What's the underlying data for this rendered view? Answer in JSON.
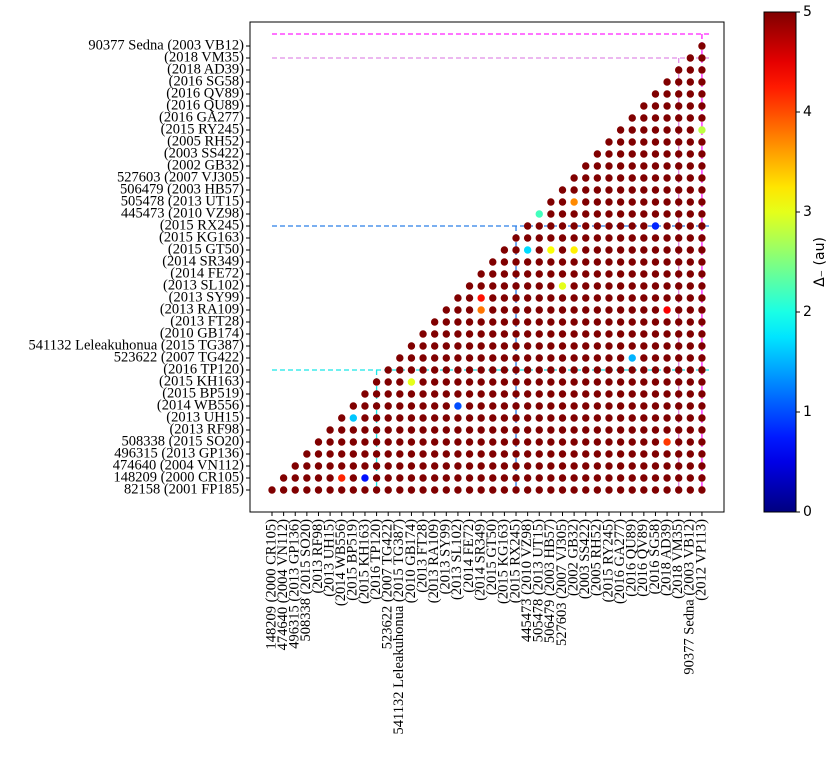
{
  "chart_data": {
    "type": "matrix",
    "x_categories": [
      "148209 (2000 CR105)",
      "474640 (2004 VN112)",
      "496315 (2013 GP136)",
      "508338 (2015 SO20)",
      "(2013 RF98)",
      "(2013 UH15)",
      "(2014 WB556)",
      "(2015 BP519)",
      "(2015 KH163)",
      "(2016 TP120)",
      "523622 (2007 TG422)",
      "541132 Leleakuhonua (2015 TG387)",
      "(2010 GB174)",
      "(2013 FT28)",
      "(2013 RA109)",
      "(2013 SY99)",
      "(2013 SL102)",
      "(2014 FE72)",
      "(2014 SR349)",
      "(2015 GT50)",
      "(2015 KG163)",
      "(2015 RX245)",
      "445473 (2010 VZ98)",
      "505478 (2013 UT15)",
      "506479 (2003 HB57)",
      "527603 (2007 VJ305)",
      "(2002 GB32)",
      "(2003 SS422)",
      "(2005 RH52)",
      "(2015 RY245)",
      "(2016 GA277)",
      "(2016 QU89)",
      "(2016 QV89)",
      "(2016 SG58)",
      "(2018 AD39)",
      "(2018 VM35)",
      "90377 Sedna (2003 VB12)",
      "(2012 VP113)"
    ],
    "y_categories": [
      "82158 (2001 FP185)",
      "148209 (2000 CR105)",
      "474640 (2004 VN112)",
      "496315 (2013 GP136)",
      "508338 (2015 SO20)",
      "(2013 RF98)",
      "(2013 UH15)",
      "(2014 WB556)",
      "(2015 BP519)",
      "(2015 KH163)",
      "(2016 TP120)",
      "523622 (2007 TG422)",
      "541132 Leleakuhonua (2015 TG387)",
      "(2010 GB174)",
      "(2013 FT28)",
      "(2013 RA109)",
      "(2013 SY99)",
      "(2013 SL102)",
      "(2014 FE72)",
      "(2014 SR349)",
      "(2015 GT50)",
      "(2015 KG163)",
      "(2015 RX245)",
      "445473 (2010 VZ98)",
      "505478 (2013 UT15)",
      "506479 (2003 HB57)",
      "527603 (2007 VJ305)",
      "(2002 GB32)",
      "(2003 SS422)",
      "(2005 RH52)",
      "(2015 RY245)",
      "(2016 GA277)",
      "(2016 QU89)",
      "(2016 QV89)",
      "(2016 SG58)",
      "(2018 AD39)",
      "(2018 VM35)",
      "90377 Sedna (2003 VB12)"
    ],
    "values": [
      [
        5,
        5,
        5,
        5,
        5,
        5,
        5,
        5,
        5,
        5,
        5,
        5,
        5,
        5,
        5,
        5,
        5,
        5,
        5,
        5,
        5,
        5,
        5,
        5,
        5,
        5,
        5,
        5,
        5,
        5,
        5,
        5,
        5,
        5,
        5,
        5,
        5,
        5
      ],
      [
        5,
        5,
        5,
        5,
        5,
        4.2,
        5,
        0.7,
        5,
        5,
        5,
        5,
        5,
        5,
        5,
        5,
        5,
        5,
        5,
        5,
        5,
        5,
        5,
        5,
        5,
        5,
        5,
        5,
        5,
        5,
        5,
        5,
        5,
        5,
        5,
        5,
        5
      ],
      [
        5,
        5,
        5,
        5,
        5,
        5,
        5,
        5,
        5,
        5,
        5,
        5,
        5,
        5,
        5,
        5,
        5,
        5,
        5,
        5,
        5,
        5,
        5,
        5,
        5,
        5,
        5,
        5,
        5,
        5,
        5,
        5,
        5,
        5,
        5,
        5
      ],
      [
        5,
        5,
        5,
        5,
        5,
        5,
        5,
        5,
        5,
        5,
        5,
        5,
        5,
        5,
        5,
        5,
        5,
        5,
        5,
        5,
        5,
        5,
        5,
        5,
        5,
        5,
        5,
        5,
        5,
        5,
        5,
        5,
        5,
        5,
        5
      ],
      [
        5,
        5,
        5,
        5,
        5,
        5,
        5,
        5,
        5,
        5,
        5,
        5,
        5,
        5,
        5,
        5,
        5,
        5,
        5,
        5,
        5,
        5,
        5,
        5,
        5,
        5,
        5,
        5,
        5,
        5,
        4.1,
        5,
        5,
        5
      ],
      [
        5,
        5,
        5,
        5,
        5,
        5,
        5,
        5,
        5,
        5,
        5,
        5,
        5,
        5,
        5,
        5,
        5,
        5,
        5,
        5,
        5,
        5,
        5,
        5,
        5,
        5,
        5,
        5,
        5,
        5,
        5,
        5,
        5
      ],
      [
        5,
        1.6,
        5,
        5,
        5,
        5,
        5,
        5,
        5,
        5,
        5,
        5,
        5,
        5,
        5,
        5,
        5,
        5,
        5,
        5,
        5,
        5,
        5,
        5,
        5,
        5,
        5,
        5,
        5,
        5,
        5,
        5
      ],
      [
        5,
        5,
        5,
        5,
        5,
        5,
        5,
        5,
        5,
        1.0,
        5,
        5,
        5,
        5,
        5,
        5,
        5,
        5,
        5,
        5,
        5,
        5,
        5,
        5,
        5,
        5,
        5,
        5,
        5,
        5,
        5
      ],
      [
        5,
        5,
        5,
        5,
        5,
        5,
        5,
        5,
        5,
        5,
        5,
        5,
        5,
        5,
        5,
        5,
        5,
        5,
        5,
        5,
        5,
        5,
        5,
        5,
        5,
        5,
        5,
        5,
        5,
        5
      ],
      [
        5,
        5,
        5,
        3.0,
        5,
        5,
        5,
        5,
        5,
        5,
        5,
        5,
        5,
        5,
        5,
        5,
        5,
        5,
        5,
        5,
        5,
        5,
        5,
        5,
        5,
        5,
        5,
        5,
        5
      ],
      [
        5,
        5,
        5,
        5,
        5,
        5,
        5,
        5,
        5,
        5,
        5,
        5,
        5,
        5,
        5,
        5,
        5,
        5,
        5,
        5,
        5,
        5,
        5,
        5,
        5,
        5,
        5,
        5
      ],
      [
        5,
        5,
        5,
        5,
        5,
        5,
        5,
        5,
        5,
        5,
        5,
        5,
        5,
        5,
        5,
        5,
        5,
        5,
        5,
        5,
        1.5,
        5,
        5,
        5,
        5,
        5,
        5
      ],
      [
        5,
        5,
        5,
        5,
        5,
        5,
        5,
        5,
        5,
        5,
        5,
        5,
        5,
        5,
        5,
        5,
        5,
        5,
        5,
        5,
        5,
        5,
        5,
        5,
        5,
        5
      ],
      [
        5,
        5,
        5,
        5,
        5,
        5,
        5,
        5,
        5,
        5,
        5,
        5,
        5,
        5,
        5,
        5,
        5,
        5,
        5,
        5,
        5,
        5,
        5,
        5,
        5
      ],
      [
        5,
        5,
        5,
        5,
        5,
        5,
        5,
        5,
        5,
        5,
        5,
        5,
        5,
        5,
        5,
        5,
        5,
        5,
        5,
        5,
        5,
        5,
        5,
        5
      ],
      [
        5,
        5,
        5,
        3.8,
        5,
        5,
        5,
        5,
        5,
        5,
        5,
        5,
        5,
        5,
        5,
        5,
        5,
        5,
        5,
        4.4,
        5,
        5,
        5
      ],
      [
        5,
        5,
        4.3,
        5,
        5,
        5,
        5,
        5,
        5,
        5,
        5,
        5,
        5,
        5,
        5,
        5,
        5,
        5,
        5,
        5,
        5,
        5
      ],
      [
        5,
        5,
        5,
        5,
        5,
        5,
        5,
        5,
        3.0,
        5,
        5,
        5,
        5,
        5,
        5,
        5,
        5,
        5,
        5,
        5,
        5
      ],
      [
        5,
        5,
        5,
        5,
        5,
        5,
        5,
        5,
        5,
        5,
        5,
        5,
        5,
        5,
        5,
        5,
        5,
        5,
        5,
        5
      ],
      [
        5,
        5,
        5,
        5,
        5,
        5,
        5,
        5,
        5,
        5,
        5,
        5,
        5,
        5,
        5,
        5,
        5,
        5,
        5
      ],
      [
        5,
        5,
        1.7,
        5,
        3.1,
        5,
        3.2,
        5,
        5,
        5,
        5,
        5,
        5,
        5,
        5,
        5,
        5,
        5
      ],
      [
        5,
        5,
        5,
        5,
        5,
        5,
        5,
        5,
        5,
        5,
        5,
        5,
        5,
        5,
        5,
        5,
        5
      ],
      [
        5,
        5,
        5,
        5,
        5,
        5,
        5,
        5,
        5,
        5,
        5,
        0.8,
        5,
        5,
        5,
        5
      ],
      [
        2.2,
        5,
        5,
        5,
        5,
        5,
        5,
        5,
        5,
        5,
        5,
        5,
        5,
        5,
        5
      ],
      [
        5,
        5,
        3.7,
        5,
        5,
        5,
        5,
        5,
        5,
        5,
        5,
        5,
        5,
        5
      ],
      [
        5,
        5,
        5,
        5,
        5,
        5,
        5,
        5,
        5,
        5,
        5,
        5,
        5
      ],
      [
        5,
        5,
        5,
        5,
        5,
        5,
        5,
        5,
        5,
        5,
        5,
        5
      ],
      [
        5,
        5,
        5,
        5,
        5,
        5,
        5,
        5,
        5,
        5,
        5
      ],
      [
        5,
        5,
        5,
        5,
        5,
        5,
        5,
        5,
        5,
        5
      ],
      [
        5,
        5,
        5,
        5,
        5,
        5,
        5,
        5,
        5
      ],
      [
        5,
        5,
        5,
        5,
        5,
        5,
        5,
        2.8
      ],
      [
        5,
        5,
        5,
        5,
        5,
        5,
        5
      ],
      [
        5,
        5,
        5,
        5,
        5,
        5
      ],
      [
        5,
        5,
        5,
        5,
        5
      ],
      [
        5,
        5,
        5,
        5
      ],
      [
        5,
        5,
        5
      ],
      [
        5,
        5
      ],
      [
        5
      ]
    ],
    "colormap": "jet",
    "clim": [
      0,
      5
    ],
    "cticks": [
      0,
      1,
      2,
      3,
      4,
      5
    ],
    "colorbar_label": "Δ₋ (au)"
  }
}
